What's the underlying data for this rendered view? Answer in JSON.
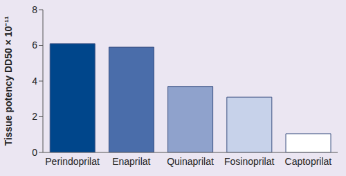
{
  "chart_data": {
    "type": "bar",
    "y_label": "Tissue potency DD50 × 10⁻¹¹",
    "categories": [
      "Perindoprilat",
      "Enaprilat",
      "Quinaprilat",
      "Fosinoprilat",
      "Captoprilat"
    ],
    "values": [
      6.1,
      5.9,
      3.7,
      3.1,
      1.05
    ],
    "colors": [
      "#00468b",
      "#4a6daa",
      "#8fa2cc",
      "#c7d2ea",
      "#ffffff"
    ],
    "ylim": [
      0,
      8
    ],
    "yticks": [
      0,
      2,
      4,
      6,
      8
    ],
    "grid": false
  }
}
